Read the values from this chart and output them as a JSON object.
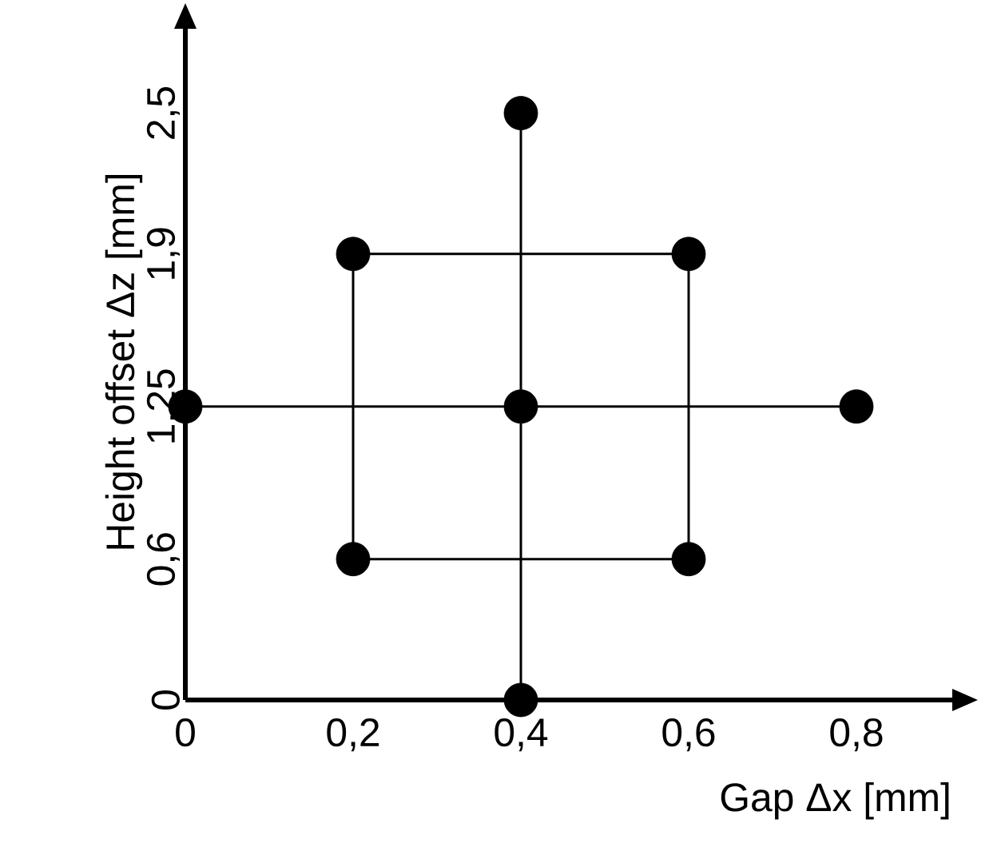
{
  "chart_data": {
    "type": "scatter",
    "xlabel": "Gap Δx [mm]",
    "ylabel": "Height offset Δz [mm]",
    "xlim": [
      0,
      0.92
    ],
    "ylim": [
      0,
      2.88
    ],
    "xticks": [
      0,
      {
        "value": 0.2,
        "label": "0,2"
      },
      {
        "value": 0.4,
        "label": "0,4"
      },
      {
        "value": 0.6,
        "label": "0,6"
      },
      {
        "value": 0.8,
        "label": "0,8"
      }
    ],
    "yticks": [
      0,
      {
        "value": 0.6,
        "label": "0,6"
      },
      {
        "value": 1.25,
        "label": "1,25"
      },
      {
        "value": 1.9,
        "label": "1,9"
      },
      {
        "value": 2.5,
        "label": "2,5"
      }
    ],
    "grid": false,
    "series": [
      {
        "type": "line",
        "marker": "none",
        "color": "#000000",
        "x": [
          0,
          0.8
        ],
        "values": [
          1.25,
          1.25
        ]
      },
      {
        "type": "line",
        "marker": "none",
        "color": "#000000",
        "x": [
          0.4,
          0.4
        ],
        "values": [
          0,
          2.5
        ]
      },
      {
        "type": "line",
        "marker": "none",
        "color": "#000000",
        "x": [
          0.2,
          0.6
        ],
        "values": [
          0.6,
          0.6
        ]
      },
      {
        "type": "line",
        "marker": "none",
        "color": "#000000",
        "x": [
          0.2,
          0.6
        ],
        "values": [
          1.9,
          1.9
        ]
      },
      {
        "type": "line",
        "marker": "none",
        "color": "#000000",
        "x": [
          0.2,
          0.2
        ],
        "values": [
          0.6,
          1.9
        ]
      },
      {
        "type": "line",
        "marker": "none",
        "color": "#000000",
        "x": [
          0.6,
          0.6
        ],
        "values": [
          0.6,
          1.9
        ]
      },
      {
        "marker": "circle",
        "color": "#000000",
        "x": [
          0,
          0.2,
          0.2,
          0.4,
          0.4,
          0.4,
          0.6,
          0.6,
          0.8
        ],
        "values": [
          1.25,
          0.6,
          1.9,
          0,
          1.25,
          2.5,
          0.6,
          1.9,
          1.25
        ]
      }
    ]
  }
}
